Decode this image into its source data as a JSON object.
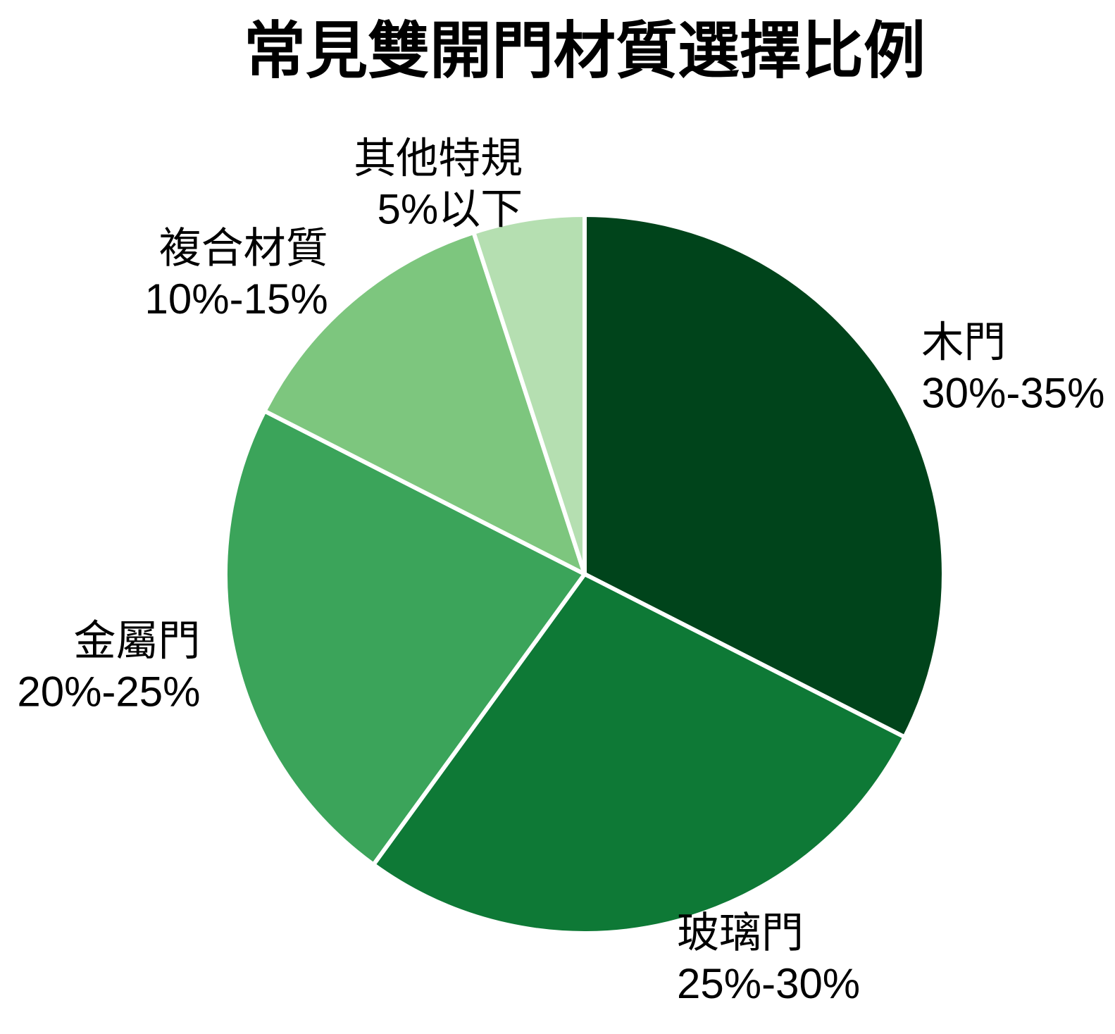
{
  "chart_data": {
    "type": "pie",
    "title": "常見雙開門材質選擇比例",
    "slices": [
      {
        "label": "木門",
        "range_label": "30%-35%",
        "value": 32.5,
        "color": "#00441b"
      },
      {
        "label": "玻璃門",
        "range_label": "25%-30%",
        "value": 27.5,
        "color": "#0e7936"
      },
      {
        "label": "金屬門",
        "range_label": "20%-25%",
        "value": 22.5,
        "color": "#3ba45a"
      },
      {
        "label": "複合材質",
        "range_label": "10%-15%",
        "value": 12.5,
        "color": "#7dc67e"
      },
      {
        "label": "其他特規",
        "range_label": "5%以下",
        "value": 5.0,
        "color": "#b5dfb1"
      }
    ],
    "start_angle": "12-o-clock",
    "direction": "clockwise",
    "legend": "none",
    "background_color": "#ffffff",
    "wedge_border_color": "#ffffff",
    "text_color": "#000000"
  }
}
